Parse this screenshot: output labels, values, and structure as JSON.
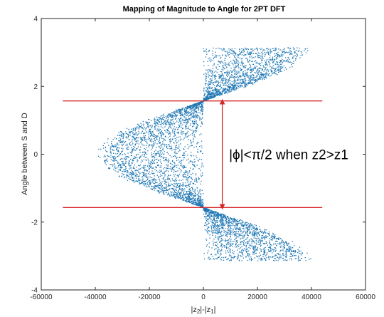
{
  "chart_data": {
    "type": "scatter",
    "title": "Mapping of Magnitude to Angle for 2PT DFT",
    "xlabel": "|z2|-|z1|",
    "ylabel": "Angle between S and D",
    "xlim": [
      -60000,
      60000
    ],
    "ylim": [
      -4,
      4
    ],
    "xticks": [
      "-60000",
      "-40000",
      "-20000",
      "0",
      "20000",
      "40000",
      "60000"
    ],
    "yticks": [
      "-4",
      "-2",
      "0",
      "2",
      "4"
    ],
    "grid": false,
    "series": [
      {
        "color": "#1f77b4",
        "description_regions": [
          {
            "x_range": [
              -40000,
              0
            ],
            "y_range": [
              -1.5708,
              1.5708
            ]
          },
          {
            "x_range": [
              0,
              40000
            ],
            "y_range": [
              1.5708,
              3.1416
            ]
          },
          {
            "x_range": [
              0,
              40000
            ],
            "y_range": [
              -3.1416,
              -1.5708
            ]
          }
        ]
      }
    ],
    "reference_lines": [
      {
        "type": "horizontal",
        "y": 1.5708,
        "x_range": [
          -52000,
          44000
        ],
        "color": "#d62728"
      },
      {
        "type": "horizontal",
        "y": -1.5708,
        "x_range": [
          -52000,
          44000
        ],
        "color": "#d62728"
      }
    ],
    "arrow": {
      "x": 7000,
      "y_range": [
        -1.5708,
        1.5708
      ],
      "color": "#d62728"
    },
    "annotation": {
      "text": "|ϕ|<π/2 when z2>z1",
      "x": 9500,
      "y": 0
    }
  }
}
